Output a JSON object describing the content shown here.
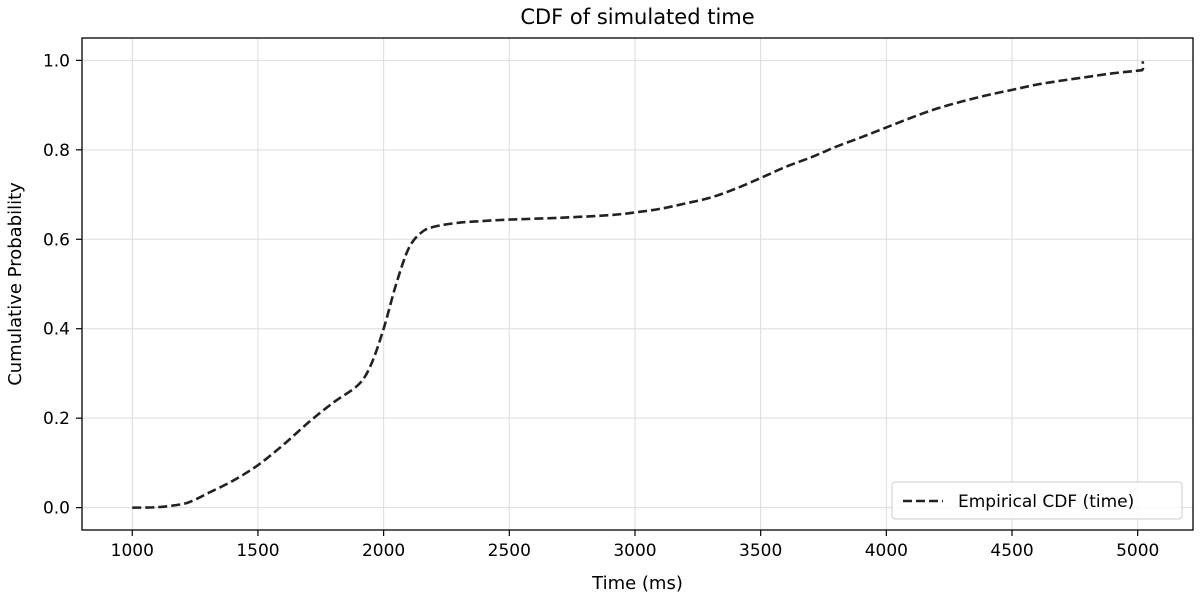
{
  "chart_data": {
    "type": "line",
    "title": "CDF of simulated time",
    "xlabel": "Time (ms)",
    "ylabel": "Cumulative Probability",
    "xlim": [
      800,
      5220
    ],
    "ylim": [
      -0.05,
      1.05
    ],
    "x_ticks": [
      1000,
      1500,
      2000,
      2500,
      3000,
      3500,
      4000,
      4500,
      5000
    ],
    "y_ticks": [
      0.0,
      0.2,
      0.4,
      0.6,
      0.8,
      1.0
    ],
    "x_tick_labels": [
      "1000",
      "1500",
      "2000",
      "2500",
      "3000",
      "3500",
      "4000",
      "4500",
      "5000"
    ],
    "y_tick_labels": [
      "0.0",
      "0.2",
      "0.4",
      "0.6",
      "0.8",
      "1.0"
    ],
    "grid": true,
    "legend_position": "bottom-right",
    "series": [
      {
        "name": "Empirical CDF (time)",
        "color": "#222222",
        "style": "dashed",
        "x": [
          1000,
          1100,
          1200,
          1250,
          1300,
          1400,
          1500,
          1600,
          1700,
          1800,
          1900,
          1950,
          2000,
          2050,
          2100,
          2150,
          2200,
          2300,
          2400,
          2500,
          2700,
          2900,
          3000,
          3100,
          3200,
          3300,
          3400,
          3500,
          3600,
          3700,
          3750,
          3800,
          3900,
          4000,
          4100,
          4200,
          4300,
          4400,
          4500,
          4600,
          4700,
          4800,
          4900,
          5000,
          5020,
          5020
        ],
        "y": [
          0.0,
          0.001,
          0.008,
          0.018,
          0.032,
          0.06,
          0.095,
          0.14,
          0.19,
          0.235,
          0.275,
          0.32,
          0.4,
          0.5,
          0.58,
          0.615,
          0.628,
          0.637,
          0.641,
          0.644,
          0.648,
          0.654,
          0.66,
          0.668,
          0.68,
          0.693,
          0.713,
          0.737,
          0.762,
          0.783,
          0.795,
          0.807,
          0.828,
          0.85,
          0.872,
          0.892,
          0.908,
          0.922,
          0.934,
          0.946,
          0.955,
          0.963,
          0.971,
          0.977,
          0.98,
          0.998
        ]
      }
    ]
  }
}
